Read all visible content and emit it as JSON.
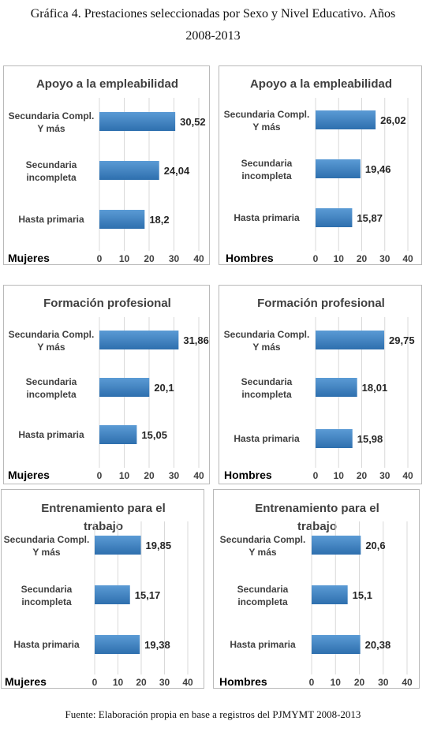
{
  "title_line1": "Gráfica 4. Prestaciones seleccionadas por Sexo y Nivel Educativo. Años",
  "title_line2": "2008-2013",
  "source": "Fuente: Elaboración propia en base a registros del PJMYMT 2008-2013",
  "colors": {
    "bar_dark": "#2e6fae",
    "bar_light": "#5b9bd5",
    "grid": "#d9d9d9"
  },
  "chart_data": [
    {
      "type": "bar",
      "title": "Apoyo a la empleabilidad",
      "gender_label": "Mujeres",
      "categories": [
        "Secundaria Compl. Y más",
        "Secundaria incompleta",
        "Hasta primaria"
      ],
      "values": [
        30.52,
        24.04,
        18.2
      ],
      "value_labels": [
        "30,52",
        "24,04",
        "18,2"
      ],
      "xlim": [
        0,
        40
      ],
      "ticks": [
        0,
        10,
        20,
        30,
        40
      ]
    },
    {
      "type": "bar",
      "title": "Apoyo a la empleabilidad",
      "gender_label": "Hombres",
      "categories": [
        "Secundaria Compl. Y más",
        "Secundaria incompleta",
        "Hasta primaria"
      ],
      "values": [
        26.02,
        19.46,
        15.87
      ],
      "value_labels": [
        "26,02",
        "19,46",
        "15,87"
      ],
      "xlim": [
        0,
        40
      ],
      "ticks": [
        0,
        10,
        20,
        30,
        40
      ]
    },
    {
      "type": "bar",
      "title": "Formación profesional",
      "gender_label": "Mujeres",
      "categories": [
        "Secundaria Compl. Y más",
        "Secundaria incompleta",
        "Hasta primaria"
      ],
      "values": [
        31.86,
        20.1,
        15.05
      ],
      "value_labels": [
        "31,86",
        "20,1",
        "15,05"
      ],
      "xlim": [
        0,
        40
      ],
      "ticks": [
        0,
        10,
        20,
        30,
        40
      ]
    },
    {
      "type": "bar",
      "title": "Formación profesional",
      "gender_label": "Hombres",
      "categories": [
        "Secundaria Compl. Y más",
        "Secundaria incompleta",
        "Hasta primaria"
      ],
      "values": [
        29.75,
        18.01,
        15.98
      ],
      "value_labels": [
        "29,75",
        "18,01",
        "15,98"
      ],
      "xlim": [
        0,
        40
      ],
      "ticks": [
        0,
        10,
        20,
        30,
        40
      ]
    },
    {
      "type": "bar",
      "title": "Entrenamiento para el trabajo",
      "gender_label": "Mujeres",
      "categories": [
        "Secundaria Compl. Y más",
        "Secundaria incompleta",
        "Hasta primaria"
      ],
      "values": [
        19.85,
        15.17,
        19.38
      ],
      "value_labels": [
        "19,85",
        "15,17",
        "19,38"
      ],
      "xlim": [
        0,
        40
      ],
      "ticks": [
        0,
        10,
        20,
        30,
        40
      ]
    },
    {
      "type": "bar",
      "title": "Entrenamiento para el trabajo",
      "gender_label": "Hombres",
      "categories": [
        "Secundaria Compl. Y más",
        "Secundaria incompleta",
        "Hasta primaria"
      ],
      "values": [
        20.6,
        15.1,
        20.38
      ],
      "value_labels": [
        "20,6",
        "15,1",
        "20,38"
      ],
      "xlim": [
        0,
        40
      ],
      "ticks": [
        0,
        10,
        20,
        30,
        40
      ]
    }
  ]
}
